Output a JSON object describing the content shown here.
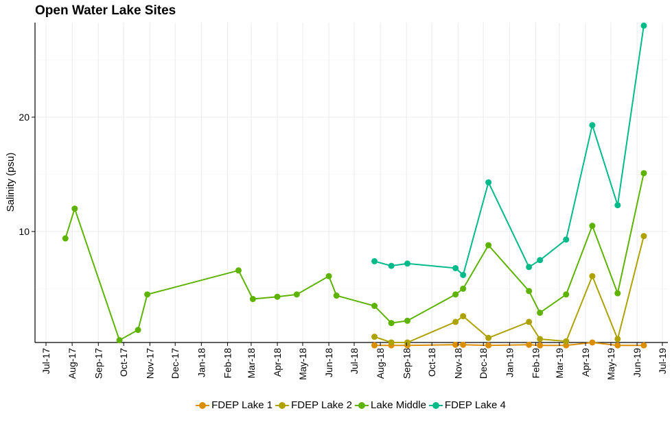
{
  "chart_data": {
    "type": "line",
    "title": "Open Water Lake Sites",
    "ylabel": "Salinity (psu)",
    "xlabel": "",
    "x_ticks": [
      "Jul-17",
      "Aug-17",
      "Sep-17",
      "Oct-17",
      "Nov-17",
      "Dec-17",
      "Jan-18",
      "Feb-18",
      "Mar-18",
      "Apr-18",
      "May-18",
      "Jun-18",
      "Jul-18",
      "Aug-18",
      "Sep-18",
      "Oct-18",
      "Nov-18",
      "Dec-18",
      "Jan-19",
      "Feb-19",
      "Mar-19",
      "Apr-19",
      "May-19",
      "Jun-19",
      "Jul-19"
    ],
    "y_ticks": [
      10,
      20
    ],
    "xlim": [
      "2017-07-01",
      "2019-07-01"
    ],
    "ylim": [
      0,
      28
    ],
    "grid": true,
    "legend_position": "bottom",
    "series": [
      {
        "name": "FDEP Lake 1",
        "color": "#DB8E00",
        "points": [
          {
            "x": "2018-07-25",
            "y": 0.05
          },
          {
            "x": "2018-08-14",
            "y": 0.05
          },
          {
            "x": "2018-09-02",
            "y": 0.05
          },
          {
            "x": "2018-10-29",
            "y": 0.1
          },
          {
            "x": "2018-11-07",
            "y": 0.1
          },
          {
            "x": "2018-12-07",
            "y": 0.05
          },
          {
            "x": "2019-01-24",
            "y": 0.1
          },
          {
            "x": "2019-02-06",
            "y": 0.05
          },
          {
            "x": "2019-03-09",
            "y": 0.05
          },
          {
            "x": "2019-04-09",
            "y": 0.3
          },
          {
            "x": "2019-05-09",
            "y": 0.05
          },
          {
            "x": "2019-06-09",
            "y": 0.05
          }
        ]
      },
      {
        "name": "FDEP Lake 2",
        "color": "#AEA200",
        "points": [
          {
            "x": "2018-07-25",
            "y": 0.8
          },
          {
            "x": "2018-08-14",
            "y": 0.3
          },
          {
            "x": "2018-09-02",
            "y": 0.3
          },
          {
            "x": "2018-10-29",
            "y": 2.1
          },
          {
            "x": "2018-11-07",
            "y": 2.6
          },
          {
            "x": "2018-12-07",
            "y": 0.7
          },
          {
            "x": "2019-01-24",
            "y": 2.1
          },
          {
            "x": "2019-02-06",
            "y": 0.6
          },
          {
            "x": "2019-03-09",
            "y": 0.4
          },
          {
            "x": "2019-04-09",
            "y": 6.1
          },
          {
            "x": "2019-05-09",
            "y": 0.6
          },
          {
            "x": "2019-06-09",
            "y": 9.6
          }
        ]
      },
      {
        "name": "Lake Middle",
        "color": "#5EB300",
        "points": [
          {
            "x": "2017-07-24",
            "y": 9.4
          },
          {
            "x": "2017-08-04",
            "y": 12.0
          },
          {
            "x": "2017-09-26",
            "y": 0.5
          },
          {
            "x": "2017-10-18",
            "y": 1.4
          },
          {
            "x": "2017-10-29",
            "y": 4.5
          },
          {
            "x": "2018-02-14",
            "y": 6.6
          },
          {
            "x": "2018-03-03",
            "y": 4.1
          },
          {
            "x": "2018-04-01",
            "y": 4.3
          },
          {
            "x": "2018-04-24",
            "y": 4.5
          },
          {
            "x": "2018-06-01",
            "y": 6.1
          },
          {
            "x": "2018-06-10",
            "y": 4.4
          },
          {
            "x": "2018-07-25",
            "y": 3.5
          },
          {
            "x": "2018-08-14",
            "y": 2.0
          },
          {
            "x": "2018-09-02",
            "y": 2.2
          },
          {
            "x": "2018-10-29",
            "y": 4.5
          },
          {
            "x": "2018-11-07",
            "y": 5.0
          },
          {
            "x": "2018-12-07",
            "y": 8.8
          },
          {
            "x": "2019-01-24",
            "y": 4.8
          },
          {
            "x": "2019-02-06",
            "y": 2.9
          },
          {
            "x": "2019-03-09",
            "y": 4.5
          },
          {
            "x": "2019-04-09",
            "y": 10.5
          },
          {
            "x": "2019-05-09",
            "y": 4.6
          },
          {
            "x": "2019-06-09",
            "y": 15.1
          }
        ]
      },
      {
        "name": "FDEP Lake 4",
        "color": "#00BA8A",
        "points": [
          {
            "x": "2018-07-25",
            "y": 7.4
          },
          {
            "x": "2018-08-14",
            "y": 7.0
          },
          {
            "x": "2018-09-02",
            "y": 7.2
          },
          {
            "x": "2018-10-29",
            "y": 6.8
          },
          {
            "x": "2018-11-07",
            "y": 6.2
          },
          {
            "x": "2018-12-07",
            "y": 14.3
          },
          {
            "x": "2019-01-24",
            "y": 6.9
          },
          {
            "x": "2019-02-06",
            "y": 7.5
          },
          {
            "x": "2019-03-09",
            "y": 9.3
          },
          {
            "x": "2019-04-09",
            "y": 19.3
          },
          {
            "x": "2019-05-09",
            "y": 12.3
          },
          {
            "x": "2019-06-09",
            "y": 28.0
          }
        ]
      }
    ]
  }
}
